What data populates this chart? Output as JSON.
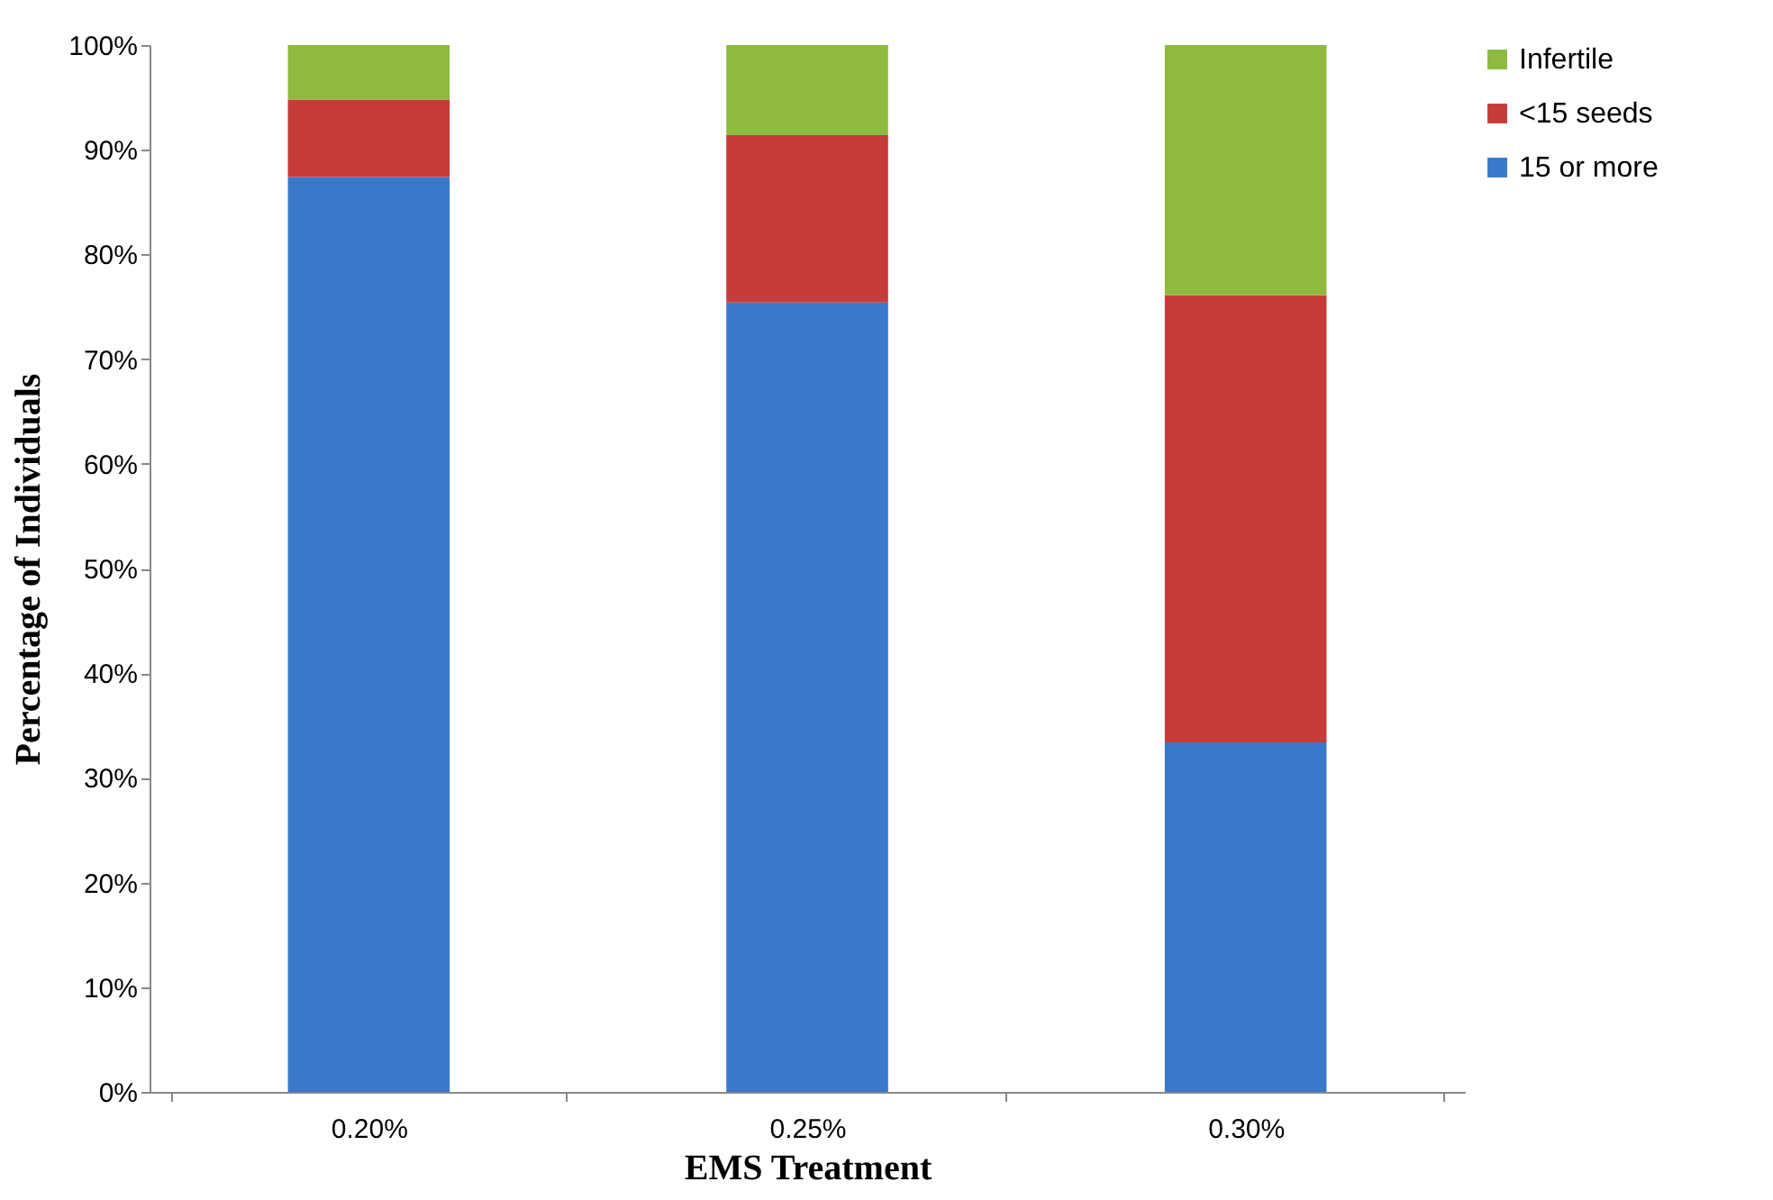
{
  "chart_data": {
    "type": "bar",
    "stacked": true,
    "xlabel": "EMS Treatment",
    "ylabel": "Percentage of Individuals",
    "categories": [
      "0.20%",
      "0.25%",
      "0.30%"
    ],
    "series": [
      {
        "name": "15 or more",
        "color": "#3a78c9",
        "values": [
          87.4,
          75.4,
          33.4
        ]
      },
      {
        "name": "<15 seeds",
        "color": "#c63c3a",
        "values": [
          7.4,
          16.0,
          42.7
        ]
      },
      {
        "name": "Infertile",
        "color": "#8dba3f",
        "values": [
          5.2,
          8.6,
          23.9
        ]
      }
    ],
    "ylim": [
      0,
      100
    ],
    "yticks": [
      {
        "value": 0,
        "label": "0%"
      },
      {
        "value": 10,
        "label": "10%"
      },
      {
        "value": 20,
        "label": "20%"
      },
      {
        "value": 30,
        "label": "30%"
      },
      {
        "value": 40,
        "label": "40%"
      },
      {
        "value": 50,
        "label": "50%"
      },
      {
        "value": 60,
        "label": "60%"
      },
      {
        "value": 70,
        "label": "70%"
      },
      {
        "value": 80,
        "label": "80%"
      },
      {
        "value": 90,
        "label": "90%"
      },
      {
        "value": 100,
        "label": "100%"
      }
    ],
    "grid": false,
    "legend": "right"
  }
}
